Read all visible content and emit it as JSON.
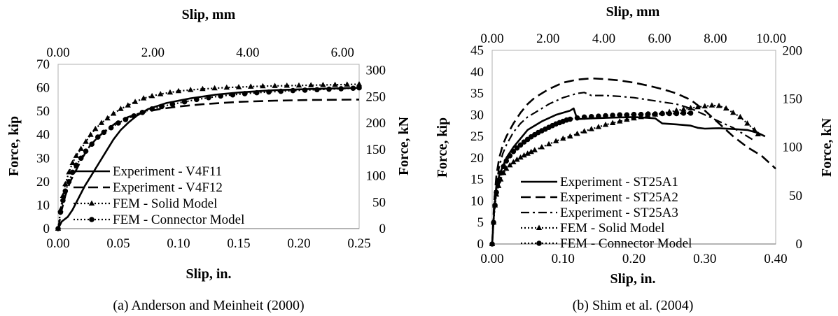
{
  "chart_data": [
    {
      "type": "line",
      "caption": "(a) Anderson and Meinheit (2000)",
      "xlabel": "Slip, in.",
      "ylabel": "Force, kip",
      "x2label": "Slip, mm",
      "y2label": "Force, kN",
      "xlim": [
        0,
        0.25
      ],
      "ylim": [
        0,
        70
      ],
      "x2lim": [
        0,
        6.35
      ],
      "y2lim": [
        0,
        311.4
      ],
      "xticks": [
        "0.00",
        "0.05",
        "0.10",
        "0.15",
        "0.20",
        "0.25"
      ],
      "yticks": [
        "0",
        "10",
        "20",
        "30",
        "40",
        "50",
        "60",
        "70"
      ],
      "x2ticks": [
        "0.00",
        "2.00",
        "4.00",
        "6.00"
      ],
      "y2ticks": [
        "0",
        "50",
        "100",
        "150",
        "200",
        "250",
        "300"
      ],
      "grid": false,
      "legend_position": "lower-right",
      "series": [
        {
          "name": "Experiment - V4F11",
          "style": "solid",
          "marker": "none",
          "x": [
            0.0,
            0.003,
            0.008,
            0.012,
            0.017,
            0.022,
            0.028,
            0.034,
            0.04,
            0.046,
            0.052,
            0.058,
            0.065,
            0.075,
            0.09,
            0.11,
            0.13,
            0.15,
            0.18,
            0.21,
            0.25
          ],
          "y": [
            0,
            3,
            5,
            8,
            13,
            18,
            23,
            28,
            33,
            38,
            42,
            45,
            48,
            51,
            53.5,
            55.5,
            57,
            58,
            59,
            59.5,
            60
          ]
        },
        {
          "name": "Experiment - V4F12",
          "style": "dashed",
          "marker": "none",
          "x": [
            0.0,
            0.003,
            0.006,
            0.01,
            0.015,
            0.02,
            0.026,
            0.033,
            0.04,
            0.048,
            0.058,
            0.07,
            0.085,
            0.1,
            0.12,
            0.15,
            0.18,
            0.21,
            0.25
          ],
          "y": [
            0,
            8,
            14,
            20,
            25,
            30,
            35,
            39,
            42,
            45,
            47.5,
            49.5,
            51,
            52,
            53,
            54,
            54.5,
            54.8,
            55
          ]
        },
        {
          "name": "FEM - Solid Model",
          "style": "dotted",
          "marker": "triangle",
          "x": [
            0.0,
            0.002,
            0.004,
            0.006,
            0.009,
            0.012,
            0.015,
            0.019,
            0.023,
            0.027,
            0.031,
            0.036,
            0.041,
            0.046,
            0.052,
            0.058,
            0.064,
            0.071,
            0.078,
            0.085,
            0.093,
            0.1,
            0.11,
            0.12,
            0.13,
            0.14,
            0.15,
            0.16,
            0.17,
            0.18,
            0.19,
            0.2,
            0.21,
            0.22,
            0.23,
            0.24,
            0.25
          ],
          "y": [
            0,
            8,
            14,
            19,
            24,
            28,
            31,
            34,
            37,
            40,
            42.5,
            45,
            47,
            49,
            51,
            52.5,
            54,
            55.5,
            56.5,
            57.3,
            58,
            58.6,
            59.1,
            59.5,
            59.8,
            60.1,
            60.3,
            60.5,
            60.7,
            60.8,
            60.9,
            61,
            61.1,
            61.2,
            61.3,
            61.4,
            61.5
          ]
        },
        {
          "name": "FEM - Connector Model",
          "style": "dotted",
          "marker": "circle",
          "x": [
            0.0,
            0.002,
            0.004,
            0.006,
            0.009,
            0.012,
            0.015,
            0.019,
            0.023,
            0.028,
            0.033,
            0.038,
            0.044,
            0.05,
            0.056,
            0.063,
            0.07,
            0.078,
            0.086,
            0.095,
            0.105,
            0.115,
            0.125,
            0.135,
            0.145,
            0.155,
            0.165,
            0.175,
            0.185,
            0.195,
            0.205,
            0.215,
            0.225,
            0.235,
            0.245,
            0.25
          ],
          "y": [
            0,
            7,
            12,
            16,
            20,
            24,
            27,
            30,
            33,
            36,
            39,
            41,
            43,
            45,
            46.5,
            48,
            49.5,
            51,
            52,
            53,
            54,
            55,
            55.8,
            56.5,
            57,
            57.5,
            57.9,
            58.2,
            58.5,
            58.8,
            59,
            59.2,
            59.4,
            59.6,
            59.8,
            60
          ]
        }
      ]
    },
    {
      "type": "line",
      "caption": "(b) Shim et al. (2004)",
      "xlabel": "Slip, in.",
      "ylabel": "Force, kip",
      "x2label": "Slip, mm",
      "y2label": "Force, kN",
      "xlim": [
        0,
        0.4
      ],
      "ylim": [
        0,
        45
      ],
      "x2lim": [
        0,
        10.16
      ],
      "y2lim": [
        0,
        200.2
      ],
      "xticks": [
        "0.00",
        "0.10",
        "0.20",
        "0.30",
        "0.40"
      ],
      "yticks": [
        "0",
        "5",
        "10",
        "15",
        "20",
        "25",
        "30",
        "35",
        "40",
        "45"
      ],
      "x2ticks": [
        "0.00",
        "2.00",
        "4.00",
        "6.00",
        "8.00",
        "10.00"
      ],
      "y2ticks": [
        "0",
        "50",
        "100",
        "150",
        "200"
      ],
      "grid": false,
      "legend_position": "lower-left",
      "series": [
        {
          "name": "Experiment - ST25A1",
          "style": "solid",
          "marker": "none",
          "x": [
            0.0,
            0.003,
            0.006,
            0.01,
            0.015,
            0.02,
            0.03,
            0.04,
            0.05,
            0.07,
            0.09,
            0.11,
            0.115,
            0.12,
            0.14,
            0.16,
            0.18,
            0.2,
            0.22,
            0.23,
            0.24,
            0.26,
            0.28,
            0.29,
            0.3,
            0.32,
            0.34,
            0.36,
            0.375,
            0.385
          ],
          "y": [
            0,
            8,
            13,
            16,
            18,
            20,
            22.5,
            24.5,
            26.5,
            28.5,
            30,
            31,
            31.5,
            29,
            29.2,
            29.3,
            29.4,
            29.5,
            29.3,
            29.2,
            28,
            27.8,
            27.5,
            27,
            26.8,
            26.9,
            26.7,
            26.5,
            25.8,
            25
          ]
        },
        {
          "name": "Experiment - ST25A2",
          "style": "dashed",
          "marker": "none",
          "x": [
            0.0,
            0.003,
            0.006,
            0.01,
            0.015,
            0.02,
            0.03,
            0.04,
            0.05,
            0.06,
            0.08,
            0.1,
            0.12,
            0.14,
            0.16,
            0.18,
            0.2,
            0.22,
            0.24,
            0.26,
            0.28,
            0.3,
            0.32,
            0.34,
            0.36,
            0.38,
            0.4
          ],
          "y": [
            0,
            10,
            16,
            20,
            23,
            25,
            28,
            30.5,
            32.5,
            34,
            36,
            37.5,
            38.2,
            38.5,
            38.3,
            38,
            37.5,
            36.8,
            36,
            35,
            33.5,
            31,
            28,
            25,
            22.5,
            20.5,
            17.5
          ]
        },
        {
          "name": "Experiment - ST25A3",
          "style": "dashdot",
          "marker": "none",
          "x": [
            0.0,
            0.003,
            0.006,
            0.01,
            0.015,
            0.02,
            0.03,
            0.04,
            0.05,
            0.06,
            0.08,
            0.1,
            0.12,
            0.13,
            0.14,
            0.16,
            0.18,
            0.2,
            0.22,
            0.24,
            0.26,
            0.28,
            0.3,
            0.32,
            0.34,
            0.36,
            0.37
          ],
          "y": [
            0,
            9,
            14,
            18,
            21,
            23,
            26,
            28,
            29.5,
            30.5,
            32.5,
            34,
            35,
            35.2,
            34.5,
            34.5,
            34.3,
            34,
            33.5,
            33,
            32.5,
            31.5,
            30,
            28.5,
            27,
            25,
            24
          ]
        },
        {
          "name": "FEM - Solid Model",
          "style": "dotted",
          "marker": "triangle",
          "x": [
            0.0,
            0.002,
            0.004,
            0.006,
            0.009,
            0.012,
            0.016,
            0.02,
            0.025,
            0.03,
            0.035,
            0.04,
            0.045,
            0.05,
            0.055,
            0.06,
            0.07,
            0.08,
            0.09,
            0.1,
            0.11,
            0.12,
            0.13,
            0.14,
            0.15,
            0.16,
            0.17,
            0.18,
            0.19,
            0.2,
            0.21,
            0.22,
            0.23,
            0.24,
            0.25,
            0.26,
            0.27,
            0.28,
            0.29,
            0.3,
            0.31,
            0.32,
            0.33,
            0.34,
            0.35,
            0.36,
            0.37,
            0.375
          ],
          "y": [
            0,
            5,
            9,
            11.5,
            13.5,
            15,
            16.5,
            17.5,
            18.3,
            19,
            19.6,
            20.1,
            20.6,
            21,
            21.4,
            21.8,
            22.5,
            23.2,
            23.9,
            24.5,
            25,
            25.6,
            26.2,
            26.7,
            27.2,
            27.7,
            28.1,
            28.5,
            28.9,
            29.2,
            29.5,
            29.8,
            30.1,
            30.4,
            30.7,
            31,
            31.3,
            31.6,
            31.8,
            32,
            32.2,
            32.1,
            31.5,
            30.5,
            29.5,
            28,
            26.5,
            25.5
          ]
        },
        {
          "name": "FEM - Connector Model",
          "style": "dotted",
          "marker": "circle",
          "x": [
            0.0,
            0.002,
            0.004,
            0.006,
            0.009,
            0.012,
            0.016,
            0.02,
            0.025,
            0.03,
            0.035,
            0.04,
            0.045,
            0.05,
            0.055,
            0.06,
            0.065,
            0.07,
            0.075,
            0.08,
            0.085,
            0.09,
            0.095,
            0.1,
            0.105,
            0.11,
            0.12,
            0.13,
            0.14,
            0.15,
            0.16,
            0.17,
            0.18,
            0.19,
            0.2,
            0.21,
            0.22,
            0.23,
            0.24,
            0.25,
            0.26,
            0.27,
            0.28
          ],
          "y": [
            0,
            5,
            9,
            12,
            14.5,
            16.5,
            18,
            19.3,
            20.5,
            21.5,
            22.3,
            23,
            23.7,
            24.3,
            24.9,
            25.4,
            25.9,
            26.3,
            26.7,
            27.1,
            27.5,
            27.9,
            28.2,
            28.5,
            28.8,
            29,
            29.3,
            29.5,
            29.6,
            29.7,
            29.8,
            29.9,
            30,
            30,
            30.1,
            30.1,
            30.2,
            30.2,
            30.3,
            30.3,
            30.3,
            30.4,
            30.4
          ]
        }
      ]
    }
  ]
}
